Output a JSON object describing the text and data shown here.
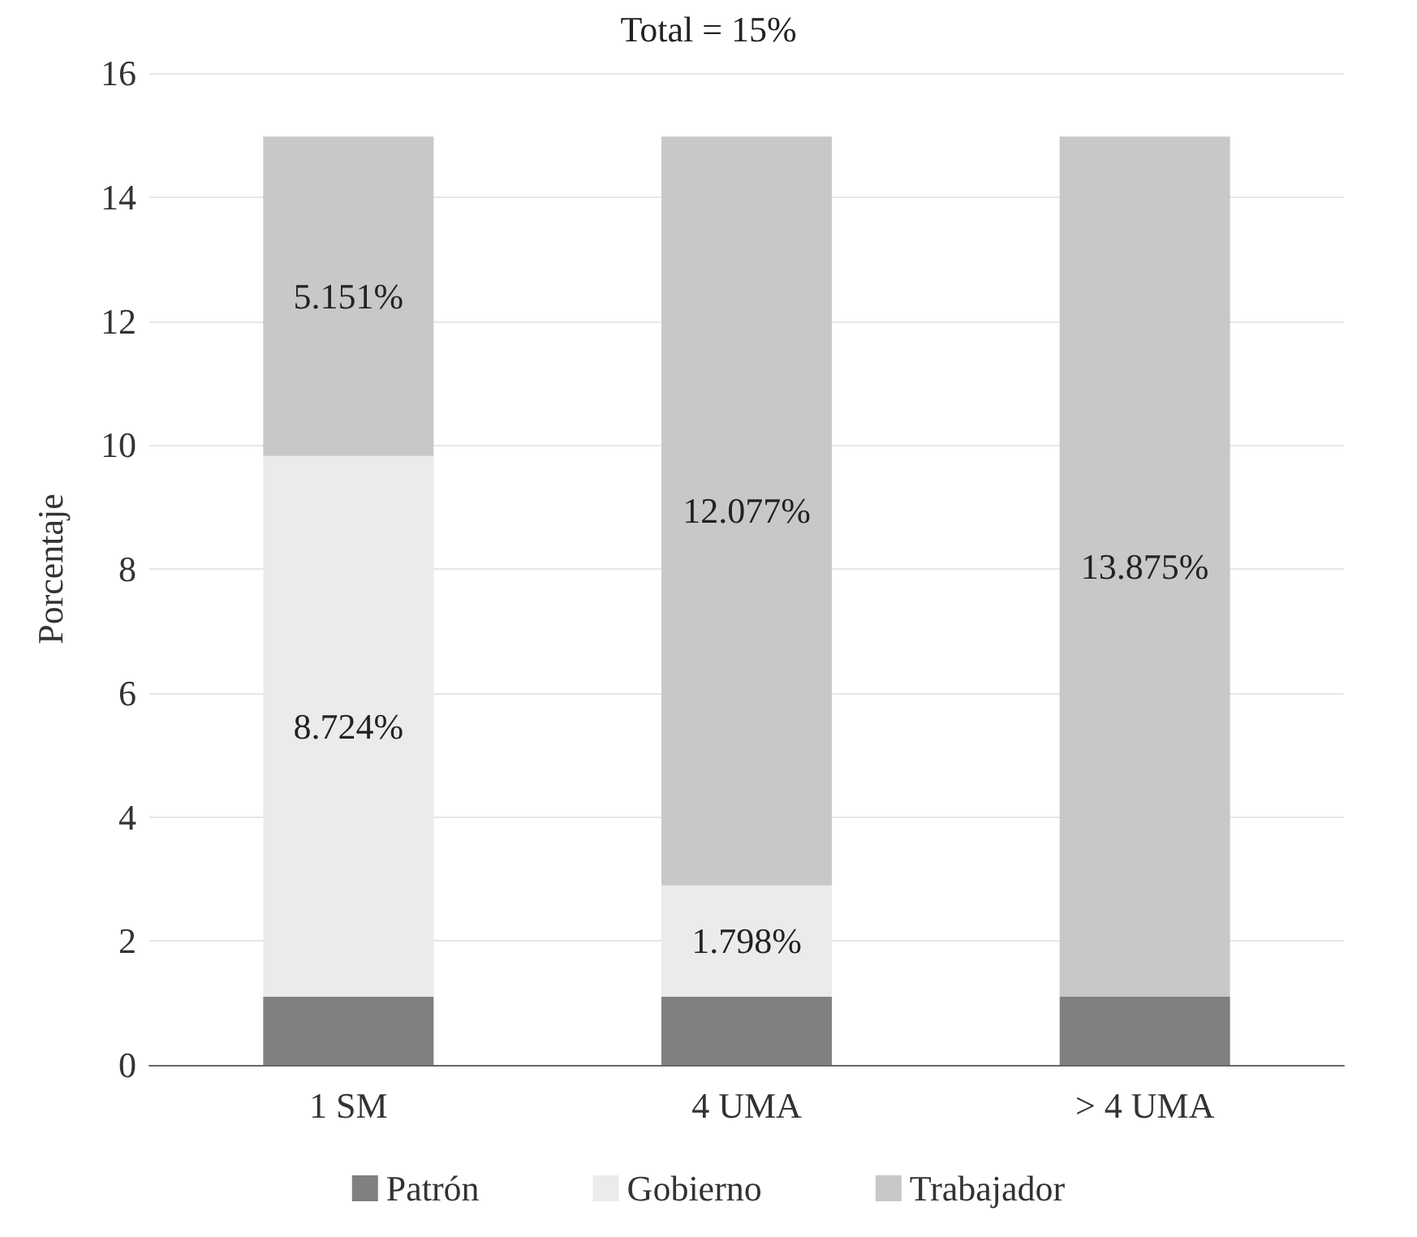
{
  "chart_data": {
    "type": "bar",
    "title": "Total = 15%",
    "ylabel": "Porcentaje",
    "categories": [
      "1 SM",
      "4 UMA",
      "> 4 UMA"
    ],
    "stacked": true,
    "series": [
      {
        "name": "Patrón",
        "color": "#808080",
        "values": [
          1.1,
          1.1,
          1.1
        ]
      },
      {
        "name": "Gobierno",
        "color": "#ebebeb",
        "values": [
          8.724,
          1.798,
          null
        ],
        "value_labels": [
          "8.724%",
          "1.798%",
          null
        ]
      },
      {
        "name": "Trabajador",
        "color": "#c8c8c8",
        "values": [
          5.151,
          12.077,
          13.875
        ],
        "value_labels": [
          "5.151%",
          "12.077%",
          "13.875%"
        ]
      }
    ],
    "ylim": [
      0,
      16
    ],
    "yticks": [
      0,
      2,
      4,
      6,
      8,
      10,
      12,
      14,
      16
    ],
    "grid": "y",
    "legend": "bottom"
  }
}
